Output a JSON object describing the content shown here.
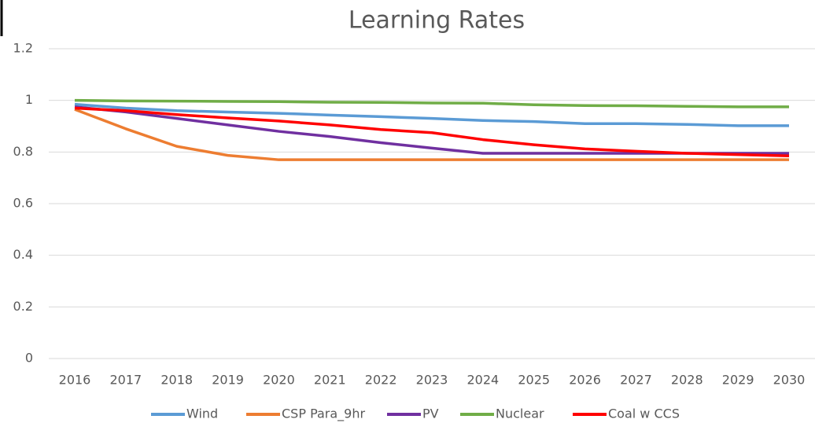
{
  "chart_data": {
    "type": "line",
    "title": "Learning Rates",
    "categories": [
      "2016",
      "2017",
      "2018",
      "2019",
      "2020",
      "2021",
      "2022",
      "2023",
      "2024",
      "2025",
      "2026",
      "2027",
      "2028",
      "2029",
      "2030"
    ],
    "series": [
      {
        "name": "Wind",
        "color": "#5b9bd5",
        "values": [
          0.985,
          0.97,
          0.96,
          0.955,
          0.95,
          0.943,
          0.937,
          0.93,
          0.922,
          0.918,
          0.91,
          0.91,
          0.907,
          0.902,
          0.902
        ]
      },
      {
        "name": "CSP Para_9hr",
        "color": "#ed7d31",
        "values": [
          0.965,
          0.89,
          0.822,
          0.787,
          0.77,
          0.77,
          0.77,
          0.77,
          0.77,
          0.77,
          0.77,
          0.77,
          0.77,
          0.77,
          0.77
        ]
      },
      {
        "name": "PV",
        "color": "#7030a0",
        "values": [
          0.975,
          0.955,
          0.93,
          0.905,
          0.88,
          0.86,
          0.836,
          0.815,
          0.795,
          0.795,
          0.795,
          0.795,
          0.795,
          0.795,
          0.795
        ]
      },
      {
        "name": "Nuclear",
        "color": "#70ad47",
        "values": [
          1.0,
          0.998,
          0.997,
          0.996,
          0.995,
          0.993,
          0.992,
          0.99,
          0.989,
          0.983,
          0.98,
          0.979,
          0.977,
          0.975,
          0.975
        ]
      },
      {
        "name": "Coal w CCS",
        "color": "#ff0000",
        "values": [
          0.97,
          0.96,
          0.945,
          0.932,
          0.92,
          0.905,
          0.887,
          0.875,
          0.848,
          0.828,
          0.812,
          0.803,
          0.795,
          0.79,
          0.785
        ]
      }
    ],
    "ylim": [
      0,
      1.2
    ],
    "yticks": [
      0,
      0.2,
      0.4,
      0.6,
      0.8,
      1,
      1.2
    ],
    "grid": true,
    "legend": "bottom"
  }
}
